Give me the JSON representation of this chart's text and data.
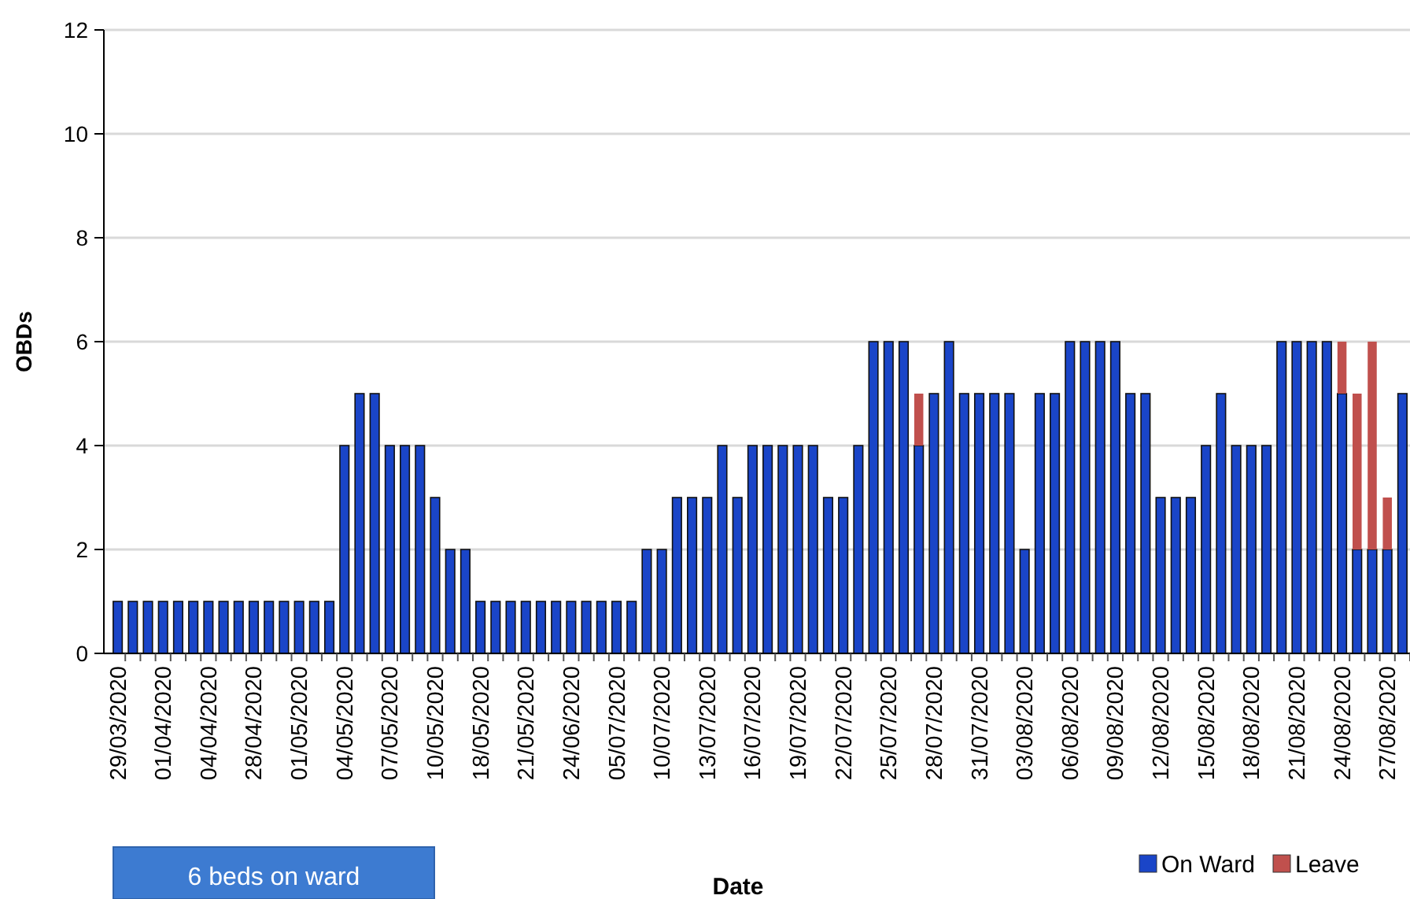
{
  "chart_data": {
    "type": "bar",
    "stacked": true,
    "xlabel": "Date",
    "ylabel": "OBDs",
    "categories": [
      "29/03/2020",
      null,
      null,
      "01/04/2020",
      null,
      null,
      "04/04/2020",
      null,
      null,
      "28/04/2020",
      null,
      null,
      "01/05/2020",
      null,
      null,
      "04/05/2020",
      null,
      null,
      "07/05/2020",
      null,
      null,
      "10/05/2020",
      null,
      null,
      "18/05/2020",
      null,
      null,
      "21/05/2020",
      null,
      null,
      "24/06/2020",
      null,
      null,
      "05/07/2020",
      null,
      null,
      "10/07/2020",
      null,
      null,
      "13/07/2020",
      null,
      null,
      "16/07/2020",
      null,
      null,
      "19/07/2020",
      null,
      null,
      "22/07/2020",
      null,
      null,
      "25/07/2020",
      null,
      null,
      "28/07/2020",
      null,
      null,
      "31/07/2020",
      null,
      null,
      "03/08/2020",
      null,
      null,
      "06/08/2020",
      null,
      null,
      "09/08/2020",
      null,
      null,
      "12/08/2020",
      null,
      null,
      "15/08/2020",
      null,
      null,
      "18/08/2020",
      null,
      null,
      "21/08/2020",
      null,
      null,
      "24/08/2020",
      null,
      null,
      "27/08/2020",
      null
    ],
    "series": [
      {
        "name": "On Ward",
        "color": "#1a45c8",
        "values": [
          1,
          1,
          1,
          1,
          1,
          1,
          1,
          1,
          1,
          1,
          1,
          1,
          1,
          1,
          1,
          4,
          5,
          5,
          4,
          4,
          4,
          3,
          2,
          2,
          1,
          1,
          1,
          1,
          1,
          1,
          1,
          1,
          1,
          1,
          1,
          2,
          2,
          3,
          3,
          3,
          4,
          3,
          4,
          4,
          4,
          4,
          4,
          3,
          3,
          4,
          6,
          6,
          6,
          4,
          5,
          6,
          5,
          5,
          5,
          5,
          2,
          5,
          5,
          6,
          6,
          6,
          6,
          5,
          5,
          3,
          3,
          3,
          4,
          5,
          4,
          4,
          4,
          6,
          6,
          6,
          6,
          5,
          2,
          2,
          2,
          5
        ]
      },
      {
        "name": "Leave",
        "color": "#c0504d",
        "values": [
          null,
          null,
          null,
          null,
          null,
          null,
          null,
          null,
          null,
          null,
          null,
          null,
          null,
          null,
          null,
          null,
          null,
          null,
          null,
          null,
          null,
          null,
          null,
          null,
          null,
          null,
          null,
          null,
          null,
          null,
          null,
          null,
          null,
          null,
          null,
          null,
          null,
          null,
          null,
          null,
          null,
          null,
          null,
          null,
          null,
          null,
          null,
          null,
          null,
          null,
          null,
          null,
          null,
          1,
          null,
          null,
          null,
          null,
          null,
          null,
          null,
          null,
          null,
          null,
          null,
          null,
          null,
          null,
          null,
          null,
          null,
          null,
          null,
          null,
          null,
          null,
          null,
          null,
          null,
          null,
          null,
          1,
          3,
          4,
          1,
          null
        ]
      }
    ],
    "ylim": [
      0,
      12
    ],
    "yticks": [
      0,
      2,
      4,
      6,
      8,
      10,
      12
    ],
    "grid": "y",
    "legend": "bottom right",
    "annotations": [
      "6 beds on ward"
    ]
  }
}
